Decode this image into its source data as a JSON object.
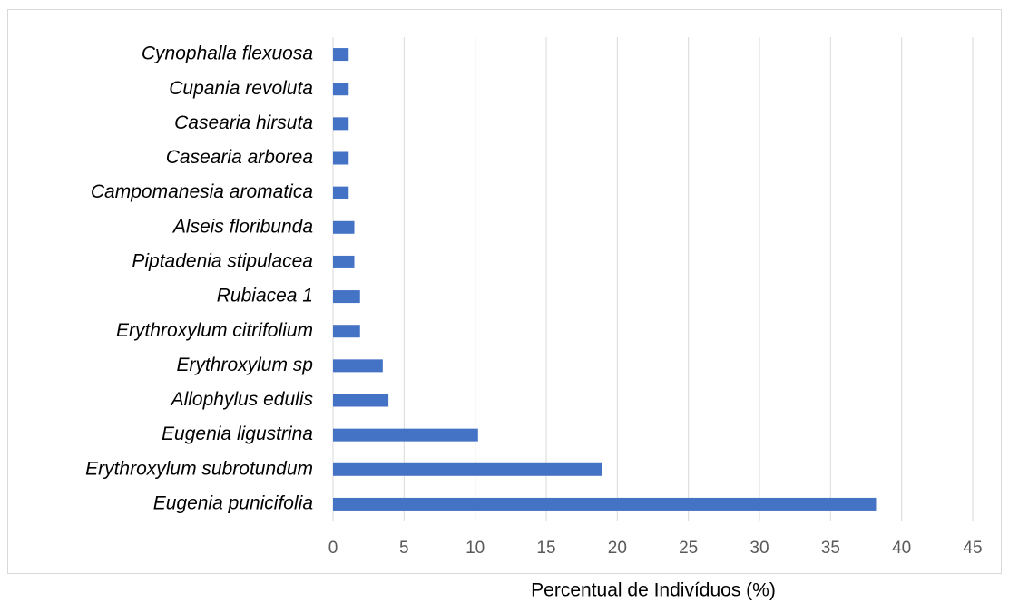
{
  "chart_data": {
    "type": "barh",
    "x_label": "Percentual de Indivíduos (%)",
    "categories": [
      "Cynophalla flexuosa",
      "Cupania revoluta",
      "Casearia hirsuta",
      "Casearia arborea",
      "Campomanesia aromatica",
      "Alseis floribunda",
      "Piptadenia stipulacea",
      "Rubiacea 1",
      "Erythroxylum citrifolium",
      "Erythroxylum sp",
      "Allophylus edulis",
      "Eugenia ligustrina",
      "Erythroxylum subrotundum",
      "Eugenia punicifolia"
    ],
    "values": [
      1.1,
      1.1,
      1.1,
      1.1,
      1.1,
      1.5,
      1.5,
      1.9,
      1.9,
      3.5,
      3.9,
      10.2,
      18.9,
      38.2
    ],
    "color": "#4472c4",
    "xlim": [
      0,
      45
    ],
    "xticks": [
      0,
      5,
      10,
      15,
      20,
      25,
      30,
      35,
      40,
      45
    ],
    "grid": true
  }
}
